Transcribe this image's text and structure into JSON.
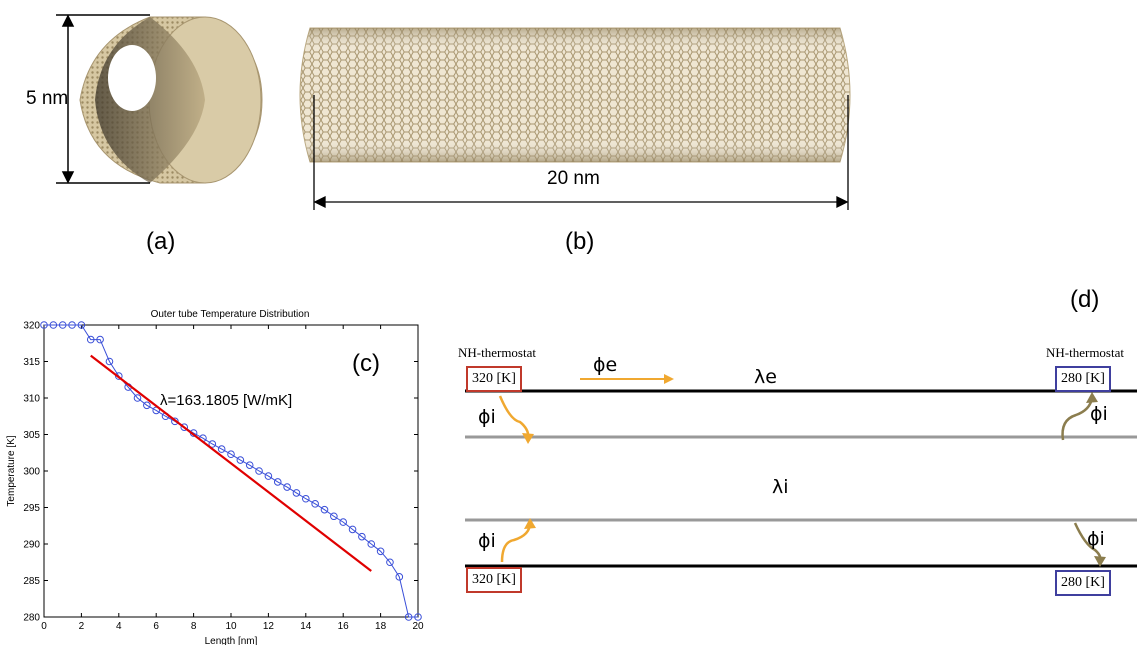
{
  "panel_a": {
    "label": "(a)",
    "dimension": "5 nm"
  },
  "panel_b": {
    "label": "(b)",
    "dimension": "20 nm"
  },
  "panel_c": {
    "label": "(c)"
  },
  "panel_d": {
    "label": "(d)",
    "thermostat_left": "NH-thermostat",
    "thermostat_right": "NH-thermostat",
    "temp_hot": "320 [K]",
    "temp_cold": "280 [K]",
    "phi_e": "ϕe",
    "phi_i": "ϕi",
    "lambda_e": "λe",
    "lambda_i": "λi"
  },
  "colors": {
    "tube": "#c2b08a",
    "hot_box": "#c0392b",
    "cold_box": "#3f3f9e",
    "flux_arrow": "#f0a830",
    "cold_arrow": "#8b7d4e",
    "fit_line": "#e00000",
    "data_marker": "#3a4fd8"
  },
  "chart_data": {
    "type": "line",
    "title": "Outer tube Temperature Distribution",
    "xlabel": "Length [nm]",
    "ylabel": "Temperature [K]",
    "xlim": [
      0,
      20
    ],
    "ylim": [
      280,
      320
    ],
    "xticks": [
      0,
      2,
      4,
      6,
      8,
      10,
      12,
      14,
      16,
      18,
      20
    ],
    "yticks": [
      280,
      285,
      290,
      295,
      300,
      305,
      310,
      315,
      320
    ],
    "annotation": "λ=163.1805 [W/mK]",
    "series": [
      {
        "marker": "circle",
        "x": [
          0,
          0.5,
          1.0,
          1.5,
          2.0,
          2.5,
          3.0,
          3.5,
          4.0,
          4.5,
          5.0,
          5.5,
          6.0,
          6.5,
          7.0,
          7.5,
          8.0,
          8.5,
          9.0,
          9.5,
          10.0,
          10.5,
          11.0,
          11.5,
          12.0,
          12.5,
          13.0,
          13.5,
          14.0,
          14.5,
          15.0,
          15.5,
          16.0,
          16.5,
          17.0,
          17.5,
          18.0,
          18.5,
          19.0,
          19.5,
          20.0
        ],
        "y": [
          320,
          320,
          320,
          320,
          320,
          318,
          318,
          315,
          313,
          311.5,
          310,
          309,
          308.3,
          307.5,
          306.8,
          306,
          305.2,
          304.5,
          303.7,
          303,
          302.3,
          301.5,
          300.8,
          300,
          299.3,
          298.5,
          297.8,
          297,
          296.2,
          295.5,
          294.7,
          293.8,
          293,
          292,
          291,
          290,
          289,
          287.5,
          285.5,
          280,
          280
        ]
      }
    ],
    "fit_line": {
      "x": [
        2.5,
        17.5
      ],
      "y": [
        315.8,
        286.3
      ]
    }
  }
}
